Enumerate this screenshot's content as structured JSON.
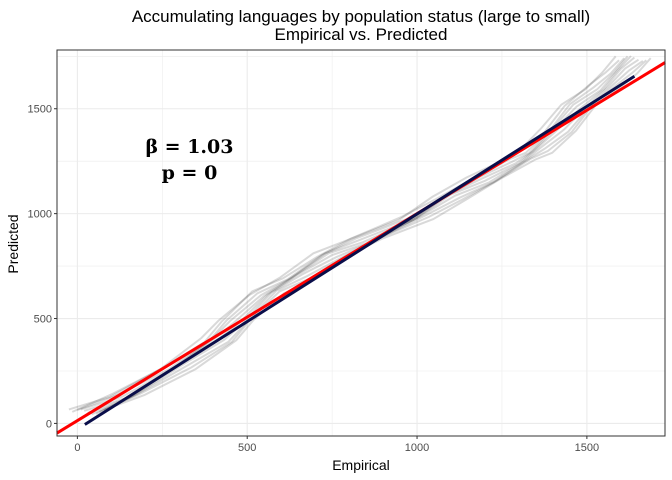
{
  "chart_data": {
    "type": "line",
    "title": "Accumulating languages by population status (large to small)",
    "subtitle": "Empirical vs. Predicted",
    "xlabel": "Empirical",
    "ylabel": "Predicted",
    "xlim": [
      -60,
      1730
    ],
    "ylim": [
      -60,
      1780
    ],
    "x_ticks": [
      0,
      500,
      1000,
      1500
    ],
    "y_ticks": [
      0,
      500,
      1000,
      1500
    ],
    "grid": true,
    "annotations": [
      {
        "text": "β = 1.03",
        "x": 330,
        "y": 1290
      },
      {
        "text": "p = 0",
        "x": 330,
        "y": 1165
      }
    ],
    "series": [
      {
        "kind": "replicates",
        "color": "#000000",
        "opacity": 0.15,
        "base": [
          [
            30,
            55
          ],
          [
            150,
            130
          ],
          [
            300,
            270
          ],
          [
            420,
            400
          ],
          [
            470,
            480
          ],
          [
            560,
            620
          ],
          [
            650,
            700
          ],
          [
            750,
            800
          ],
          [
            850,
            870
          ],
          [
            1000,
            980
          ],
          [
            1100,
            1080
          ],
          [
            1200,
            1160
          ],
          [
            1300,
            1250
          ],
          [
            1350,
            1300
          ],
          [
            1420,
            1400
          ],
          [
            1480,
            1510
          ],
          [
            1550,
            1600
          ],
          [
            1600,
            1680
          ],
          [
            1640,
            1740
          ]
        ],
        "offsets": [
          -45,
          -30,
          -20,
          -10,
          0,
          12,
          25,
          35,
          48,
          -55
        ]
      },
      {
        "kind": "fit",
        "color": "#ff0000",
        "x": [
          -60,
          1730
        ],
        "y": [
          -46,
          1720
        ]
      },
      {
        "kind": "fit",
        "color": "#0a0e4a",
        "x": [
          22,
          1640
        ],
        "y": [
          -5,
          1655
        ]
      }
    ]
  }
}
